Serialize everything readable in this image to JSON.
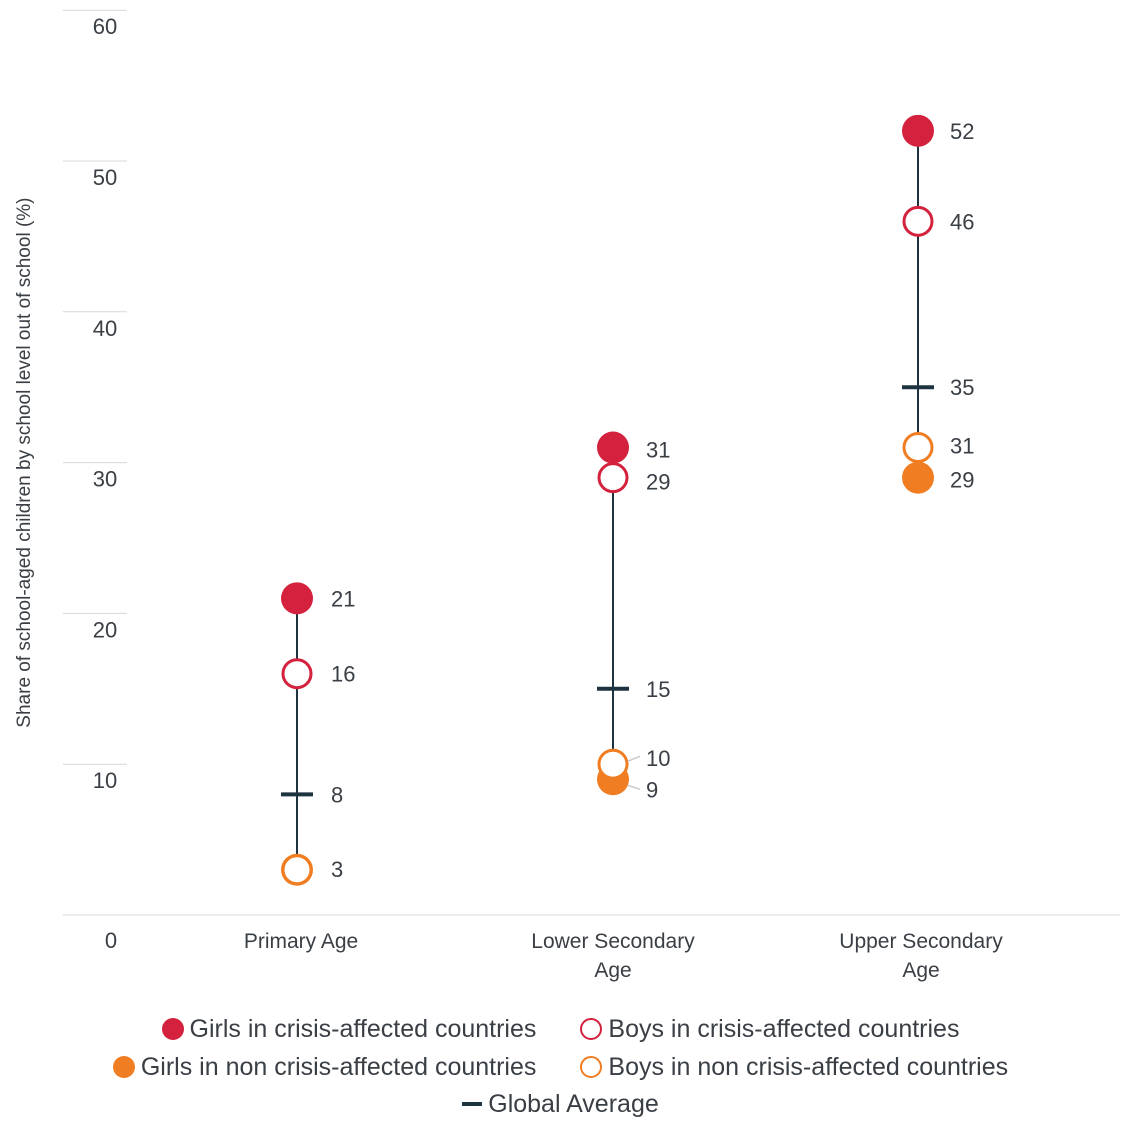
{
  "chart_data": {
    "type": "dot-range",
    "ylabel": "Share of school-aged children by school level out of school (%)",
    "ylim": [
      0,
      60
    ],
    "yticks": [
      10,
      20,
      30,
      40,
      50,
      60
    ],
    "zero_label": "0",
    "grid": false,
    "legend_position": "bottom",
    "categories": [
      {
        "lines": [
          "Primary Age"
        ]
      },
      {
        "lines": [
          "Lower Secondary",
          "Age"
        ]
      },
      {
        "lines": [
          "Upper Secondary",
          "Age"
        ]
      }
    ],
    "series": [
      {
        "key": "girls_crisis",
        "name": "Girls in crisis-affected countries",
        "marker": "filled-circle",
        "color": "#d4213d",
        "values": [
          21,
          31,
          52
        ]
      },
      {
        "key": "boys_crisis",
        "name": "Boys in crisis-affected countries",
        "marker": "hollow-circle",
        "color": "#d4213d",
        "values": [
          16,
          29,
          46
        ]
      },
      {
        "key": "girls_noncrisis",
        "name": "Girls in non crisis-affected countries",
        "marker": "filled-circle",
        "color": "#f07d22",
        "values": [
          3,
          9,
          29
        ]
      },
      {
        "key": "boys_noncrisis",
        "name": "Boys in non crisis-affected countries",
        "marker": "hollow-circle",
        "color": "#f07d22",
        "values": [
          3,
          10,
          31
        ]
      },
      {
        "key": "global_avg",
        "name": "Global Average",
        "marker": "dash",
        "color": "#1e3340",
        "values": [
          8,
          15,
          35
        ]
      }
    ],
    "value_labels": [
      [
        21,
        16,
        8,
        3
      ],
      [
        31,
        29,
        15,
        10,
        9
      ],
      [
        52,
        46,
        35,
        31,
        29
      ]
    ]
  }
}
